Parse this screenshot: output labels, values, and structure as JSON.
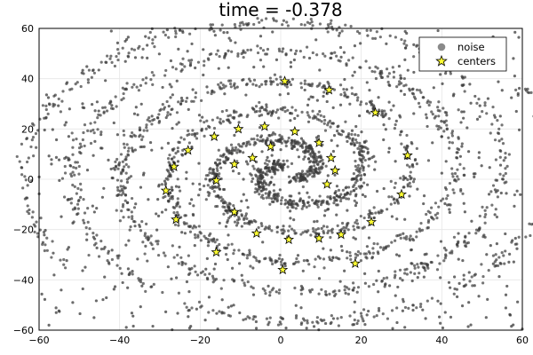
{
  "chart_data": {
    "type": "scatter",
    "title": "time =  -0.378",
    "xlabel": "",
    "ylabel": "",
    "xlim": [
      -60,
      60
    ],
    "ylim": [
      -60,
      60
    ],
    "xticks": [
      -60,
      -40,
      -20,
      0,
      20,
      40,
      60
    ],
    "yticks": [
      -60,
      -40,
      -20,
      0,
      20,
      40,
      60
    ],
    "grid": true,
    "legend_position": "top-right",
    "colors": {
      "noise": "#3a3a3a",
      "centers_fill": "#ffff33",
      "centers_edge": "#000000",
      "legend_noise": "#8a8a8a"
    },
    "series": [
      {
        "name": "noise",
        "marker": "circle",
        "spiral_model": {
          "arm_a": {
            "center": [
              2,
              3
            ],
            "r0": 2.5,
            "b": 3.75,
            "phase_deg": -60,
            "theta_end_deg": 995
          },
          "arm_b": {
            "center": [
              2,
              3
            ],
            "r0": 2.5,
            "b": 3.75,
            "phase_deg": 120,
            "theta_end_deg": 990
          },
          "spread": 1.2,
          "count": 2400
        },
        "background_count": 700
      },
      {
        "name": "centers",
        "marker": "star",
        "points": [
          [
            1,
            39
          ],
          [
            12,
            35.5
          ],
          [
            23.5,
            26.5
          ],
          [
            31.5,
            9.5
          ],
          [
            30,
            -6
          ],
          [
            22.5,
            -17
          ],
          [
            15,
            -22
          ],
          [
            9.5,
            -23.5
          ],
          [
            2,
            -24
          ],
          [
            -6,
            -21.5
          ],
          [
            -11.5,
            -13
          ],
          [
            -16,
            -0.5
          ],
          [
            -11.5,
            6
          ],
          [
            -7,
            8.5
          ],
          [
            -2.5,
            13
          ],
          [
            -28.5,
            -4.5
          ],
          [
            -26,
            -16
          ],
          [
            -16,
            -29
          ],
          [
            0.5,
            -36
          ],
          [
            18.5,
            -33.5
          ],
          [
            -26.5,
            5
          ],
          [
            -23,
            11.5
          ],
          [
            -16.5,
            17
          ],
          [
            -10.5,
            20
          ],
          [
            -4,
            21
          ],
          [
            3.5,
            19
          ],
          [
            9.5,
            14.5
          ],
          [
            12.5,
            8.5
          ],
          [
            13.5,
            3.5
          ],
          [
            11.5,
            -2
          ]
        ]
      }
    ]
  }
}
